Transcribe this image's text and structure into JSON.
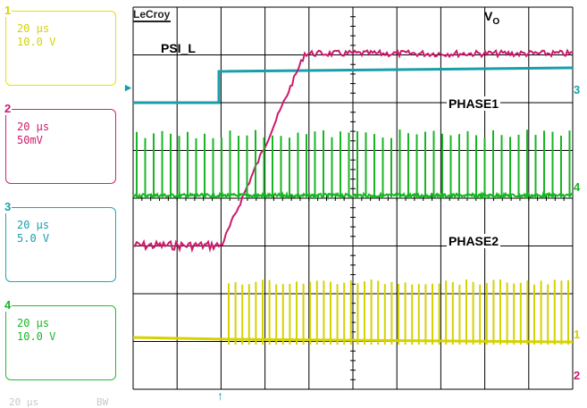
{
  "channels": [
    {
      "num": "1",
      "timebase": "20 µs",
      "scale": "10.0 V",
      "color": "#d6d200"
    },
    {
      "num": "2",
      "timebase": "20 µs",
      "scale": "50mV",
      "color": "#cc1a6c"
    },
    {
      "num": "3",
      "timebase": "20 µs",
      "scale": "5.0 V",
      "color": "#1a9eaa"
    },
    {
      "num": "4",
      "timebase": "20 µs",
      "scale": "10.0 V",
      "color": "#19b524"
    }
  ],
  "footer": {
    "timebase": "20 µs",
    "bw": "BW"
  },
  "brand": "LeCroy",
  "labels": {
    "psi": "PSI_L",
    "phase1": "PHASE1",
    "phase2": "PHASE2",
    "vo": "V",
    "vo_sub": "O"
  },
  "channel_markers": {
    "ch1": "1",
    "ch2": "2",
    "ch3": "3",
    "ch4": "4"
  },
  "icons": {
    "trigger": "trigger-arrow-icon",
    "ground_ref": "ground-marker-icon"
  },
  "grid_color": "#000000"
}
